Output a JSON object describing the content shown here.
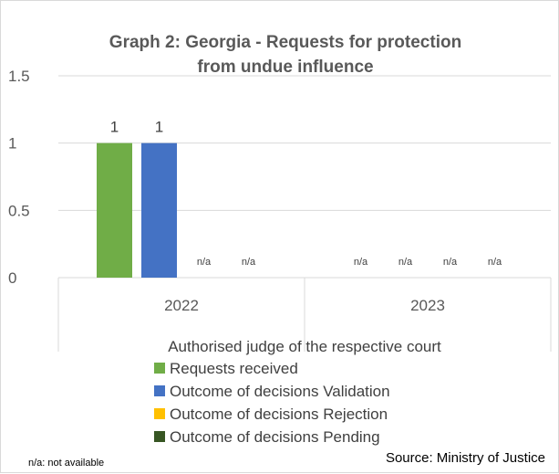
{
  "chart_data": {
    "type": "bar",
    "title_line1": "Graph 2: Georgia - Requests for protection",
    "title_line2": "from undue influence",
    "xlabel": "Authorised judge of the respective court",
    "ylabel": "",
    "ylim": [
      0,
      1.5
    ],
    "yticks": [
      "0",
      "0.5",
      "1",
      "1.5"
    ],
    "ytick_values": [
      0,
      0.5,
      1,
      1.5
    ],
    "grid": true,
    "categories": [
      "2022",
      "2023"
    ],
    "series": [
      {
        "name": "Requests received",
        "color": "#70ad47",
        "values": [
          1,
          null
        ],
        "labels": [
          "1",
          "n/a"
        ]
      },
      {
        "name": "Outcome of decisions Validation",
        "color": "#4472c4",
        "values": [
          1,
          null
        ],
        "labels": [
          "1",
          "n/a"
        ]
      },
      {
        "name": "Outcome of decisions Rejection",
        "color": "#ffc000",
        "values": [
          null,
          null
        ],
        "labels": [
          "n/a",
          "n/a"
        ]
      },
      {
        "name": "Outcome of decisions Pending",
        "color": "#375623",
        "values": [
          null,
          null
        ],
        "labels": [
          "n/a",
          "n/a"
        ]
      }
    ],
    "legend_position": "bottom",
    "footnote": "n/a: not available",
    "source": "Source: Ministry of Justice"
  }
}
